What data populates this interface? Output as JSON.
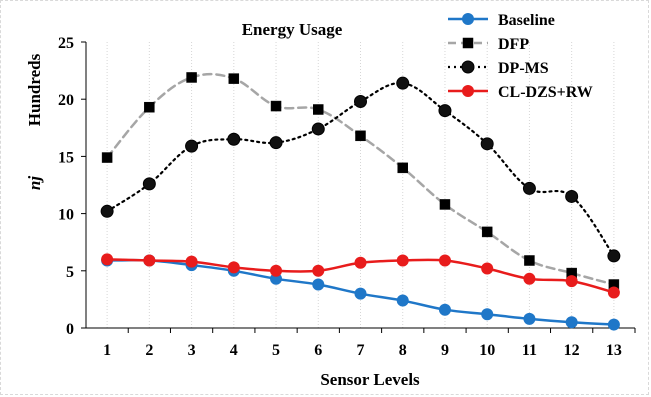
{
  "chart_data": {
    "type": "line",
    "title": "Energy Usage",
    "xlabel": "Sensor Levels",
    "ylabel_units": "Hundreds",
    "ylabel": "nj",
    "x": [
      1,
      2,
      3,
      4,
      5,
      6,
      7,
      8,
      9,
      10,
      11,
      12,
      13
    ],
    "x_tick_labels": [
      "1",
      "2",
      "3",
      "4",
      "5",
      "6",
      "7",
      "8",
      "9",
      "10",
      "11",
      "12",
      "13"
    ],
    "ylim": [
      0,
      25
    ],
    "y_ticks": [
      0,
      5,
      10,
      15,
      20,
      25
    ],
    "y_tick_labels": [
      "0",
      "5",
      "10",
      "15",
      "20",
      "25"
    ],
    "grid": "vertical-dotted",
    "legend_position": "top-right",
    "series": [
      {
        "name": "Baseline",
        "color": "#1f77c8",
        "line_style": "solid",
        "marker": "circle",
        "values": [
          5.9,
          5.9,
          5.5,
          5.0,
          4.3,
          3.8,
          3.0,
          2.4,
          1.6,
          1.2,
          0.8,
          0.5,
          0.3
        ]
      },
      {
        "name": "DFP",
        "color": "#a6a6a6",
        "line_style": "dashed",
        "marker": "square",
        "values": [
          14.9,
          19.3,
          21.9,
          21.8,
          19.4,
          19.1,
          16.8,
          14.0,
          10.8,
          8.4,
          5.9,
          4.8,
          3.8
        ]
      },
      {
        "name": "DP-MS",
        "color": "#000000",
        "line_style": "dotted",
        "marker": "circle",
        "values": [
          10.2,
          12.6,
          15.9,
          16.5,
          16.2,
          17.4,
          19.8,
          21.4,
          19.0,
          16.1,
          12.2,
          11.5,
          6.3
        ]
      },
      {
        "name": "CL-DZS+RW",
        "color": "#e81c1c",
        "line_style": "solid",
        "marker": "circle",
        "values": [
          6.0,
          5.9,
          5.8,
          5.3,
          5.0,
          5.0,
          5.7,
          5.9,
          5.9,
          5.2,
          4.3,
          4.1,
          3.1
        ]
      }
    ]
  }
}
